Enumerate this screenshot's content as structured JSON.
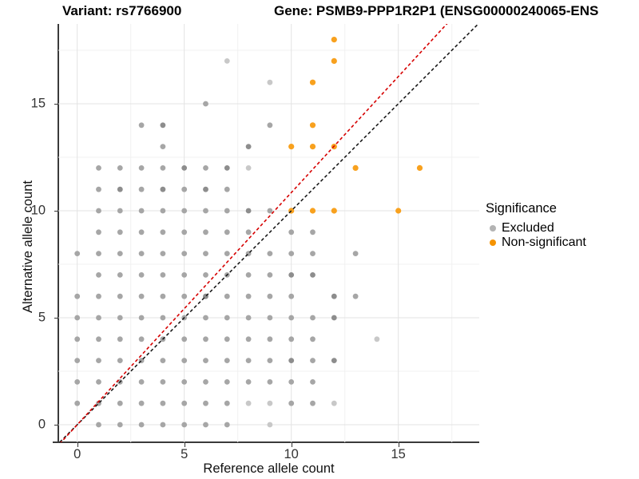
{
  "title": {
    "variant": "Variant: rs7766900",
    "gene": "Gene: PSMB9-PPP1R2P1 (ENSG00000240065-ENS"
  },
  "chart_data": {
    "type": "scatter",
    "xlabel": "Reference allele count",
    "ylabel": "Alternative allele count",
    "xlim": [
      -0.9,
      18.8
    ],
    "ylim": [
      -0.8,
      18.7
    ],
    "xticks": [
      0,
      5,
      10,
      15
    ],
    "yticks": [
      0,
      5,
      10,
      15
    ],
    "xticks_minor": [
      2.5,
      7.5,
      12.5,
      17.5
    ],
    "yticks_minor": [
      2.5,
      7.5,
      12.5,
      17.5
    ],
    "grid": "major+minor",
    "legend": {
      "title": "Significance",
      "position": "right",
      "entries": [
        {
          "label": "Excluded",
          "color": "#b3b3b3"
        },
        {
          "label": "Non-significant",
          "color": "#f59300"
        }
      ]
    },
    "series": [
      {
        "name": "Excluded",
        "color_levels": {
          "1": "#c8c8c8",
          "2": "#a6a6a6",
          "3": "#8d8d8d"
        },
        "points": [
          [
            1,
            0,
            2
          ],
          [
            2,
            0,
            2
          ],
          [
            3,
            0,
            2
          ],
          [
            4,
            0,
            2
          ],
          [
            5,
            0,
            2
          ],
          [
            6,
            0,
            2
          ],
          [
            7,
            0,
            2
          ],
          [
            9,
            0,
            1
          ],
          [
            0,
            1,
            2
          ],
          [
            1,
            1,
            2
          ],
          [
            2,
            1,
            2
          ],
          [
            3,
            1,
            2
          ],
          [
            4,
            1,
            2
          ],
          [
            5,
            1,
            2
          ],
          [
            6,
            1,
            2
          ],
          [
            7,
            1,
            2
          ],
          [
            8,
            1,
            1
          ],
          [
            9,
            1,
            1
          ],
          [
            10,
            1,
            2
          ],
          [
            11,
            1,
            2
          ],
          [
            12,
            1,
            1
          ],
          [
            0,
            2,
            2
          ],
          [
            1,
            2,
            2
          ],
          [
            2,
            2,
            2
          ],
          [
            3,
            2,
            2
          ],
          [
            4,
            2,
            2
          ],
          [
            5,
            2,
            2
          ],
          [
            6,
            2,
            2
          ],
          [
            7,
            2,
            2
          ],
          [
            8,
            2,
            2
          ],
          [
            9,
            2,
            2
          ],
          [
            10,
            2,
            2
          ],
          [
            11,
            2,
            2
          ],
          [
            0,
            3,
            2
          ],
          [
            1,
            3,
            2
          ],
          [
            2,
            3,
            2
          ],
          [
            3,
            3,
            2
          ],
          [
            4,
            3,
            2
          ],
          [
            5,
            3,
            2
          ],
          [
            6,
            3,
            2
          ],
          [
            7,
            3,
            2
          ],
          [
            8,
            3,
            2
          ],
          [
            9,
            3,
            2
          ],
          [
            10,
            3,
            3
          ],
          [
            11,
            3,
            2
          ],
          [
            12,
            3,
            3
          ],
          [
            0,
            4,
            2
          ],
          [
            1,
            4,
            2
          ],
          [
            2,
            4,
            2
          ],
          [
            3,
            4,
            2
          ],
          [
            4,
            4,
            2
          ],
          [
            5,
            4,
            2
          ],
          [
            6,
            4,
            2
          ],
          [
            7,
            4,
            2
          ],
          [
            8,
            4,
            2
          ],
          [
            9,
            4,
            2
          ],
          [
            10,
            4,
            2
          ],
          [
            11,
            4,
            2
          ],
          [
            14,
            4,
            1
          ],
          [
            0,
            5,
            2
          ],
          [
            1,
            5,
            2
          ],
          [
            2,
            5,
            2
          ],
          [
            3,
            5,
            2
          ],
          [
            4,
            5,
            2
          ],
          [
            5,
            5,
            2
          ],
          [
            6,
            5,
            2
          ],
          [
            7,
            5,
            2
          ],
          [
            8,
            5,
            2
          ],
          [
            9,
            5,
            2
          ],
          [
            10,
            5,
            2
          ],
          [
            11,
            5,
            2
          ],
          [
            12,
            5,
            3
          ],
          [
            0,
            6,
            2
          ],
          [
            1,
            6,
            2
          ],
          [
            2,
            6,
            2
          ],
          [
            3,
            6,
            2
          ],
          [
            4,
            6,
            2
          ],
          [
            5,
            6,
            2
          ],
          [
            6,
            6,
            3
          ],
          [
            7,
            6,
            2
          ],
          [
            8,
            6,
            2
          ],
          [
            9,
            6,
            2
          ],
          [
            10,
            6,
            2
          ],
          [
            12,
            6,
            3
          ],
          [
            13,
            6,
            2
          ],
          [
            1,
            7,
            2
          ],
          [
            2,
            7,
            2
          ],
          [
            3,
            7,
            2
          ],
          [
            4,
            7,
            2
          ],
          [
            5,
            7,
            2
          ],
          [
            6,
            7,
            2
          ],
          [
            7,
            7,
            2
          ],
          [
            8,
            7,
            2
          ],
          [
            9,
            7,
            2
          ],
          [
            10,
            7,
            3
          ],
          [
            11,
            7,
            3
          ],
          [
            0,
            8,
            2
          ],
          [
            1,
            8,
            2
          ],
          [
            2,
            8,
            2
          ],
          [
            3,
            8,
            2
          ],
          [
            4,
            8,
            2
          ],
          [
            5,
            8,
            2
          ],
          [
            6,
            8,
            2
          ],
          [
            7,
            8,
            2
          ],
          [
            8,
            8,
            2
          ],
          [
            9,
            8,
            2
          ],
          [
            10,
            8,
            2
          ],
          [
            11,
            8,
            2
          ],
          [
            13,
            8,
            2
          ],
          [
            1,
            9,
            2
          ],
          [
            2,
            9,
            2
          ],
          [
            3,
            9,
            2
          ],
          [
            4,
            9,
            2
          ],
          [
            5,
            9,
            2
          ],
          [
            6,
            9,
            2
          ],
          [
            7,
            9,
            2
          ],
          [
            8,
            9,
            2
          ],
          [
            10,
            9,
            2
          ],
          [
            11,
            9,
            2
          ],
          [
            1,
            10,
            2
          ],
          [
            2,
            10,
            2
          ],
          [
            3,
            10,
            2
          ],
          [
            4,
            10,
            2
          ],
          [
            5,
            10,
            2
          ],
          [
            6,
            10,
            2
          ],
          [
            7,
            10,
            2
          ],
          [
            8,
            10,
            3
          ],
          [
            9,
            10,
            2
          ],
          [
            1,
            11,
            2
          ],
          [
            2,
            11,
            3
          ],
          [
            3,
            11,
            2
          ],
          [
            4,
            11,
            3
          ],
          [
            5,
            11,
            2
          ],
          [
            6,
            11,
            3
          ],
          [
            7,
            11,
            2
          ],
          [
            1,
            12,
            2
          ],
          [
            2,
            12,
            2
          ],
          [
            3,
            12,
            2
          ],
          [
            4,
            12,
            2
          ],
          [
            5,
            12,
            3
          ],
          [
            6,
            12,
            2
          ],
          [
            7,
            12,
            3
          ],
          [
            8,
            12,
            1
          ],
          [
            4,
            13,
            2
          ],
          [
            8,
            13,
            3
          ],
          [
            3,
            14,
            2
          ],
          [
            4,
            14,
            3
          ],
          [
            9,
            14,
            2
          ],
          [
            6,
            15,
            2
          ],
          [
            9,
            16,
            1
          ],
          [
            7,
            17,
            1
          ]
        ]
      },
      {
        "name": "Non-significant",
        "color": "#f8a11e",
        "points": [
          [
            10,
            10
          ],
          [
            11,
            10
          ],
          [
            12,
            10
          ],
          [
            15,
            10
          ],
          [
            13,
            12
          ],
          [
            16,
            12
          ],
          [
            10,
            13
          ],
          [
            11,
            13
          ],
          [
            12,
            13
          ],
          [
            11,
            14
          ],
          [
            11,
            16
          ],
          [
            12,
            17
          ],
          [
            12,
            18
          ]
        ]
      }
    ],
    "lines": [
      {
        "name": "identity",
        "slope": 1.0,
        "intercept": 0,
        "color": "#1a1a1a",
        "dash": true
      },
      {
        "name": "fit",
        "slope": 1.085,
        "intercept": 0,
        "color": "#d60000",
        "dash": true
      }
    ],
    "grid_colors": {
      "major": "#e3e3e3",
      "minor": "#f1f1f1"
    }
  }
}
